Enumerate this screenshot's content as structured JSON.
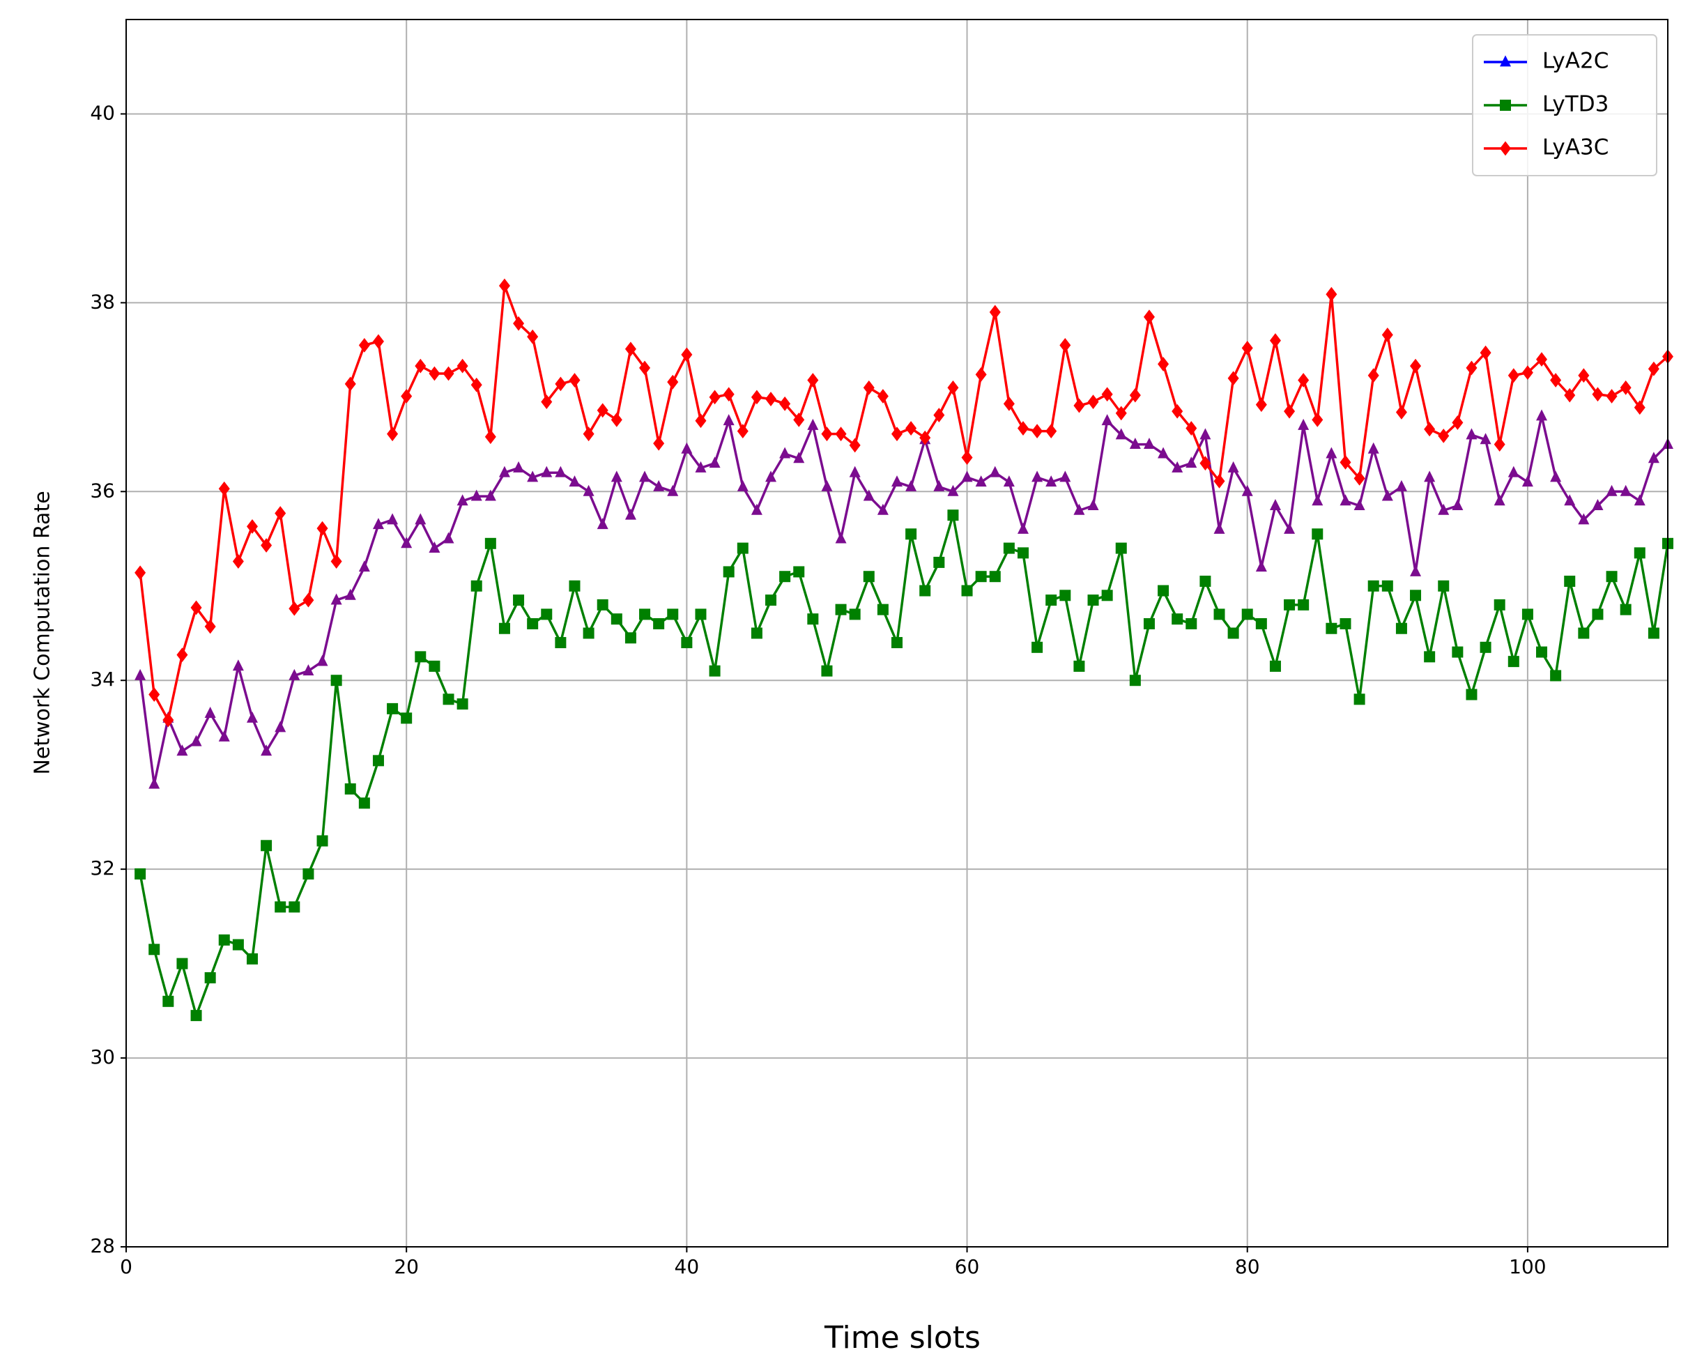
{
  "chart_data": {
    "type": "line",
    "xlabel": "Time slots",
    "ylabel": "Network Computation Rate",
    "xlim": [
      0,
      110
    ],
    "ylim": [
      28,
      41
    ],
    "xticks": [
      0,
      20,
      40,
      60,
      80,
      100
    ],
    "yticks": [
      28,
      30,
      32,
      34,
      36,
      38,
      40
    ],
    "grid": true,
    "legend_loc": "upper right",
    "x": [
      1,
      2,
      3,
      4,
      5,
      6,
      7,
      8,
      9,
      10,
      11,
      12,
      13,
      14,
      15,
      16,
      17,
      18,
      19,
      20,
      21,
      22,
      23,
      24,
      25,
      26,
      27,
      28,
      29,
      30,
      31,
      32,
      33,
      34,
      35,
      36,
      37,
      38,
      39,
      40,
      41,
      42,
      43,
      44,
      45,
      46,
      47,
      48,
      49,
      50,
      51,
      52,
      53,
      54,
      55,
      56,
      57,
      58,
      59,
      60,
      61,
      62,
      63,
      64,
      65,
      66,
      67,
      68,
      69,
      70,
      71,
      72,
      73,
      74,
      75,
      76,
      77,
      78,
      79,
      80,
      81,
      82,
      83,
      84,
      85,
      86,
      87,
      88,
      89,
      90,
      91,
      92,
      93,
      94,
      95,
      96,
      97,
      98,
      99,
      100,
      101,
      102,
      103,
      104,
      105,
      106,
      107,
      108,
      109,
      110
    ],
    "series": [
      {
        "name": "LyA2C",
        "color": "#7b0c8f",
        "legend_color": "#0000ff",
        "marker": "triangle",
        "values": [
          34.05,
          32.9,
          33.6,
          33.25,
          33.35,
          33.65,
          33.4,
          34.15,
          33.6,
          33.25,
          33.5,
          34.05,
          34.1,
          34.2,
          34.85,
          34.9,
          35.2,
          35.65,
          35.7,
          35.45,
          35.7,
          35.4,
          35.5,
          35.9,
          35.95,
          35.95,
          36.2,
          36.25,
          36.15,
          36.2,
          36.2,
          36.1,
          36.0,
          35.65,
          36.15,
          35.75,
          36.15,
          36.05,
          36.0,
          36.45,
          36.25,
          36.3,
          36.75,
          36.05,
          35.8,
          36.15,
          36.4,
          36.35,
          36.7,
          36.05,
          35.5,
          36.2,
          35.95,
          35.8,
          36.1,
          36.05,
          36.55,
          36.05,
          36.0,
          36.15,
          36.1,
          36.2,
          36.1,
          35.6,
          36.15,
          36.1,
          36.15,
          35.8,
          35.85,
          36.75,
          36.6,
          36.5,
          36.5,
          36.4,
          36.25,
          36.3,
          36.6,
          35.6,
          36.25,
          36.0,
          35.2,
          35.85,
          35.6,
          36.7,
          35.9,
          36.4,
          35.9,
          35.85,
          36.45,
          35.95,
          36.05,
          35.15,
          36.15,
          35.8,
          35.85,
          36.6,
          36.55,
          35.9,
          36.2,
          36.1,
          36.8,
          36.15,
          35.9,
          35.7,
          35.85,
          36.0,
          36.0,
          35.9,
          36.35,
          36.5
        ]
      },
      {
        "name": "LyTD3",
        "color": "#008000",
        "marker": "square",
        "values": [
          31.95,
          31.15,
          30.6,
          31.0,
          30.45,
          30.85,
          31.25,
          31.2,
          31.05,
          32.25,
          31.6,
          31.6,
          31.95,
          32.3,
          34.0,
          32.85,
          32.7,
          33.15,
          33.7,
          33.6,
          34.25,
          34.15,
          33.8,
          33.75,
          35.0,
          35.45,
          34.55,
          34.85,
          34.6,
          34.7,
          34.4,
          35.0,
          34.5,
          34.8,
          34.65,
          34.45,
          34.7,
          34.6,
          34.7,
          34.4,
          34.7,
          34.1,
          35.15,
          35.4,
          34.5,
          34.85,
          35.1,
          35.15,
          34.65,
          34.1,
          34.75,
          34.7,
          35.1,
          34.75,
          34.4,
          35.55,
          34.95,
          35.25,
          35.75,
          34.95,
          35.1,
          35.1,
          35.4,
          35.35,
          34.35,
          34.85,
          34.9,
          34.15,
          34.85,
          34.9,
          35.4,
          34.0,
          34.6,
          34.95,
          34.65,
          34.6,
          35.05,
          34.7,
          34.5,
          34.7,
          34.6,
          34.15,
          34.8,
          34.8,
          35.55,
          34.55,
          34.6,
          33.8,
          35.0,
          35.0,
          34.55,
          34.9,
          34.25,
          35.0,
          34.3,
          33.85,
          34.35,
          34.8,
          34.2,
          34.7,
          34.3,
          34.05,
          35.05,
          34.5,
          34.7,
          35.1,
          34.75,
          35.35,
          34.5,
          35.45
        ]
      },
      {
        "name": "LyA3C",
        "color": "#ff0000",
        "marker": "diamond",
        "values": [
          35.14,
          33.85,
          33.58,
          34.27,
          34.77,
          34.57,
          36.03,
          35.26,
          35.63,
          35.43,
          35.77,
          34.76,
          34.85,
          35.61,
          35.26,
          37.14,
          37.55,
          37.59,
          36.61,
          37.01,
          37.33,
          37.25,
          37.25,
          37.33,
          37.13,
          36.58,
          38.18,
          37.78,
          37.64,
          36.95,
          37.14,
          37.18,
          36.61,
          36.86,
          36.76,
          37.51,
          37.31,
          36.51,
          37.16,
          37.45,
          36.75,
          37.0,
          37.03,
          36.64,
          37.0,
          36.98,
          36.93,
          36.76,
          37.18,
          36.61,
          36.61,
          36.49,
          37.1,
          37.01,
          36.61,
          36.67,
          36.57,
          36.81,
          37.1,
          36.36,
          37.24,
          37.9,
          36.93,
          36.67,
          36.64,
          36.64,
          37.55,
          36.91,
          36.95,
          37.03,
          36.83,
          37.02,
          37.85,
          37.35,
          36.85,
          36.67,
          36.3,
          36.11,
          37.2,
          37.52,
          36.92,
          37.6,
          36.85,
          37.18,
          36.76,
          38.09,
          36.31,
          36.14,
          37.23,
          37.66,
          36.84,
          37.33,
          36.66,
          36.59,
          36.73,
          37.31,
          37.47,
          36.5,
          37.23,
          37.26,
          37.4,
          37.18,
          37.02,
          37.23,
          37.03,
          37.01,
          37.1,
          36.89,
          37.3,
          37.43
        ]
      }
    ]
  }
}
